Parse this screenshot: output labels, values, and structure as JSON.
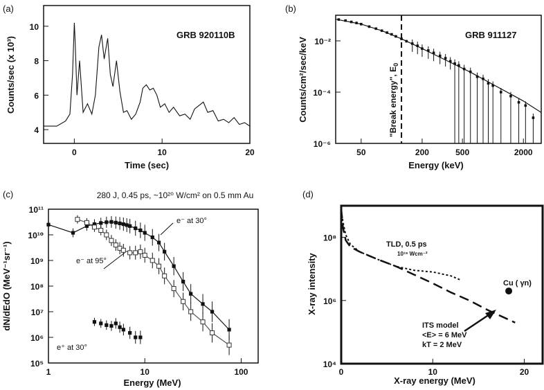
{
  "chart_data": [
    {
      "panel_label": "(a)",
      "type": "line",
      "title": "GRB 920110B",
      "xlabel": "Time (sec)",
      "ylabel": "Counts/sec (x 10³)",
      "xlim": [
        -3.5,
        20
      ],
      "ylim": [
        3.2,
        11.2
      ],
      "xticks": [
        "0",
        "10",
        "20"
      ],
      "yticks": [
        "4",
        "6",
        "8",
        "10"
      ],
      "series": [
        {
          "x": [
            -3.5,
            -2,
            -1,
            -0.5,
            -0.2,
            0,
            0.1,
            0.3,
            0.6,
            1,
            1.5,
            2,
            2.4,
            2.8,
            3.1,
            3.4,
            3.8,
            4.1,
            4.4,
            4.8,
            5.2,
            5.6,
            6,
            6.5,
            7,
            7.5,
            7.8,
            8.2,
            8.6,
            9,
            9.4,
            9.8,
            10.3,
            10.8,
            11.3,
            12,
            12.6,
            13.2,
            13.7,
            14.2,
            14.7,
            15.2,
            15.8,
            16.4,
            17,
            17.6,
            18.2,
            18.8,
            19.4,
            20
          ],
          "y": [
            4.2,
            4.2,
            4.5,
            4.9,
            7.2,
            10.2,
            9.0,
            6.0,
            8.0,
            5.0,
            5.5,
            4.9,
            6.0,
            8.8,
            9.5,
            8.1,
            9.3,
            7.2,
            6.5,
            8.0,
            6.2,
            5.0,
            5.1,
            4.6,
            4.9,
            5.6,
            6.4,
            6.6,
            6.3,
            6.4,
            6.0,
            5.3,
            5.5,
            5.0,
            5.3,
            4.8,
            4.9,
            4.6,
            5.2,
            5.4,
            5.6,
            5.0,
            5.1,
            4.5,
            4.6,
            4.4,
            4.7,
            4.3,
            4.4,
            4.2
          ]
        }
      ]
    },
    {
      "panel_label": "(b)",
      "type": "scatter",
      "title": "GRB 911127",
      "xlabel": "Energy (keV)",
      "ylabel": "Counts/cm²/sec/keV",
      "x_scale": "log",
      "y_scale": "log",
      "xlim": [
        28,
        3000
      ],
      "ylim": [
        1e-06,
        0.1
      ],
      "xticks": [
        "50",
        "200",
        "500",
        "2000"
      ],
      "yticks": [
        "10⁻²",
        "10⁻⁴",
        "10⁻⁶"
      ],
      "annotation": "\"Break energy\", E",
      "annotation_subscript": "0",
      "break_energy": 125,
      "series": [
        {
          "name": "model",
          "x": [
            28,
            50,
            80,
            125,
            200,
            350,
            600,
            1000,
            2000,
            3000
          ],
          "y": [
            0.07,
            0.045,
            0.025,
            0.012,
            0.005,
            0.0017,
            0.0006,
            0.0002,
            4.5e-05,
            1.6e-05
          ]
        },
        {
          "name": "data",
          "x": [
            30,
            35,
            40,
            45,
            50,
            60,
            70,
            80,
            90,
            100,
            110,
            125,
            140,
            160,
            180,
            200,
            230,
            260,
            300,
            340,
            380,
            420,
            460,
            520,
            600,
            700,
            800,
            900,
            1000,
            1200,
            1500,
            1800,
            2100,
            2500
          ],
          "y": [
            0.068,
            0.062,
            0.055,
            0.05,
            0.045,
            0.036,
            0.03,
            0.025,
            0.021,
            0.018,
            0.015,
            0.012,
            0.0097,
            0.0078,
            0.0064,
            0.005,
            0.0042,
            0.0034,
            0.0026,
            0.0021,
            0.0016,
            0.0013,
            0.0011,
            0.0008,
            0.00062,
            0.0004,
            0.00033,
            0.00022,
            0.00018,
            0.0001,
            7e-05,
            4e-05,
            3e-05,
            1e-05
          ]
        }
      ]
    },
    {
      "panel_label": "(c)",
      "type": "line",
      "title": "280 J, 0.45 ps, ~10²⁰ W/cm² on 0.5 mm Au",
      "xlabel": "Energy (MeV)",
      "ylabel": "dN/dEdO  (MeV⁻¹sr⁻¹)",
      "x_scale": "log",
      "y_scale": "log",
      "xlim": [
        1,
        150
      ],
      "ylim": [
        100000,
        100000000000
      ],
      "xticks": [
        "1",
        "10",
        "100"
      ],
      "yticks": [
        "10¹¹",
        "10¹⁰",
        "10⁹",
        "10⁸",
        "10⁷",
        "10⁶",
        "10⁵"
      ],
      "series": [
        {
          "name": "e⁻ at 30°",
          "x": [
            1,
            1.8,
            2.5,
            3,
            3.5,
            4,
            4.5,
            5,
            5.5,
            6,
            6.5,
            7,
            8,
            9,
            10,
            12,
            14,
            16,
            20,
            25,
            30,
            40,
            50,
            75
          ],
          "y": [
            25000000000.0,
            12000000000.0,
            22000000000.0,
            26000000000.0,
            29000000000.0,
            31000000000.0,
            32000000000.0,
            30000000000.0,
            28000000000.0,
            26000000000.0,
            24000000000.0,
            22000000000.0,
            18000000000.0,
            15000000000.0,
            12000000000.0,
            8000000000.0,
            5000000000.0,
            2200000000.0,
            600000000.0,
            150000000.0,
            50000000.0,
            20000000.0,
            10000000.0,
            2000000.0
          ]
        },
        {
          "name": "e⁻ at 95°",
          "x": [
            2,
            2.5,
            3,
            3.5,
            4,
            4.5,
            5,
            5.5,
            6,
            7,
            8,
            9,
            10,
            12,
            14,
            16,
            20,
            25,
            30,
            40,
            50,
            75
          ],
          "y": [
            40000000000.0,
            30000000000.0,
            20000000000.0,
            15000000000.0,
            10000000000.0,
            6000000000.0,
            4000000000.0,
            3000000000.0,
            2500000000.0,
            2000000000.0,
            2000000000.0,
            2200000000.0,
            1600000000.0,
            1000000000.0,
            600000000.0,
            250000000.0,
            80000000.0,
            25000000.0,
            10000000.0,
            4000000.0,
            1500000.0,
            500000.0
          ]
        },
        {
          "name": "e⁺ at 30°",
          "x": [
            3,
            3.5,
            4,
            4.5,
            5,
            5.5,
            6,
            7,
            8,
            9
          ],
          "y": [
            4000000.0,
            3500000.0,
            3000000.0,
            2800000.0,
            3500000.0,
            2500000.0,
            2000000.0,
            1500000.0,
            1000000.0,
            1000000.0
          ]
        }
      ]
    },
    {
      "panel_label": "(d)",
      "type": "line",
      "xlabel": "X-ray energy (MeV)",
      "ylabel": "X-ray intensity",
      "y_scale": "log",
      "xlim": [
        0,
        22
      ],
      "ylim": [
        10000,
        1000000000
      ],
      "xticks": [
        "0",
        "10",
        "20"
      ],
      "yticks": [
        "10⁸",
        "10⁶",
        "10⁴"
      ],
      "annotations": {
        "tld_line1": "TLD, 0.5 ps",
        "tld_line2": "10¹⁹ Wcm⁻²",
        "cu": "Cu ( γn)",
        "its_line1": "ITS model",
        "its_line2": "<E> = 6 MeV",
        "its_line3": "kT = 2 MeV"
      },
      "series": [
        {
          "name": "TLD, 0.5 ps",
          "x": [
            0,
            0.2,
            0.5,
            1,
            2,
            4,
            6,
            8,
            10,
            12,
            13
          ],
          "y": [
            700000000,
            300000000,
            120000000,
            60000000,
            35000000,
            20000000,
            12000000,
            9000000,
            8000000,
            6000000,
            4500000
          ]
        },
        {
          "name": "ITS model",
          "x": [
            0,
            0.2,
            0.5,
            1,
            2,
            4,
            6,
            8,
            10,
            12,
            14,
            16,
            19
          ],
          "y": [
            800000000,
            200000000,
            80000000,
            50000000,
            35000000,
            20000000,
            12000000,
            6500000,
            3500000,
            1800000,
            1000000,
            500000,
            200000
          ]
        },
        {
          "name": "Cu ( γn)",
          "x": [
            18.3
          ],
          "y": [
            2000000
          ]
        }
      ]
    }
  ]
}
